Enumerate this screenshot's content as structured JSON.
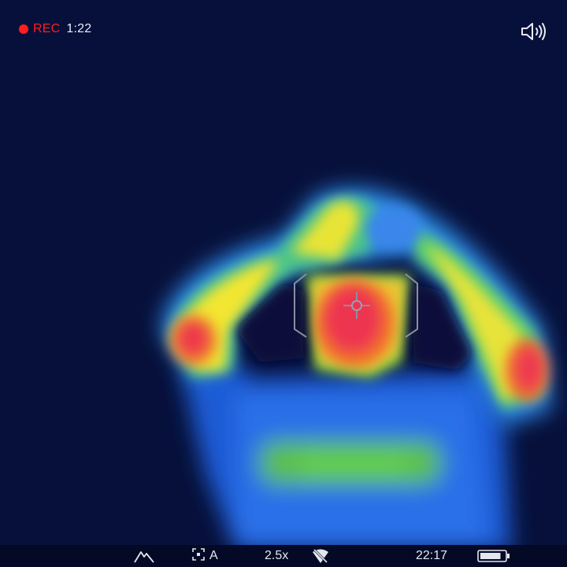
{
  "colors": {
    "background": "#07103a",
    "recording": "#ff1d1d",
    "hud_text": "#e9ecf5",
    "status_bar": "#040a26",
    "reticle": "#8a8fa0"
  },
  "recording": {
    "label": "REC",
    "elapsed": "1:22"
  },
  "audio": {
    "icon": "speaker-icon"
  },
  "status_bar": {
    "terrain_icon": "mountain-icon",
    "calibration_icon": "calibration-icon",
    "calibration_mode": "A",
    "zoom": "2.5x",
    "wifi_icon": "wifi-off-icon",
    "time": "22:17",
    "battery_icon": "battery-icon",
    "battery_level": 0.85
  }
}
